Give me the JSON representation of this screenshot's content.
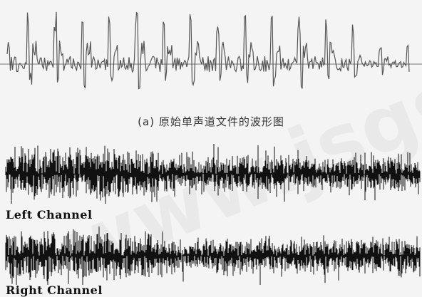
{
  "figure": {
    "caption": "(a) 原始单声道文件的波形图",
    "left_channel_label": "Left Channel",
    "right_channel_label": "Right Channel",
    "watermark": "www.jsgsoft.org",
    "colors": {
      "background": "#f4f4f4",
      "mono_wave": "#555555",
      "stereo_wave": "#111111"
    }
  }
}
